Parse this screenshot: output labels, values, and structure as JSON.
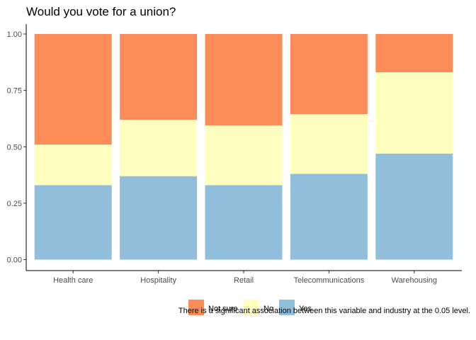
{
  "chart_data": {
    "type": "bar",
    "stacked": true,
    "title": "Would you vote for a union?",
    "xlabel": "",
    "ylabel": "",
    "categories": [
      "Health care",
      "Hospitality",
      "Retail",
      "Telecommunications",
      "Warehousing"
    ],
    "series": [
      {
        "name": "Yes",
        "color": "#91bfdb",
        "values": [
          0.33,
          0.37,
          0.33,
          0.38,
          0.47
        ]
      },
      {
        "name": "No",
        "color": "#ffffbf",
        "values": [
          0.18,
          0.25,
          0.265,
          0.265,
          0.36
        ]
      },
      {
        "name": "Not sure",
        "color": "#fc8d59",
        "values": [
          0.49,
          0.38,
          0.405,
          0.355,
          0.17
        ]
      }
    ],
    "ylim": [
      0,
      1
    ],
    "yticks": [
      "0.00",
      "0.25",
      "0.50",
      "0.75",
      "1.00"
    ],
    "legend_position": "bottom",
    "legend_order": [
      "Not sure",
      "No",
      "Yes"
    ],
    "grid": false,
    "caption": "There is a significant association between this variable and industry at the 0.05 level."
  }
}
